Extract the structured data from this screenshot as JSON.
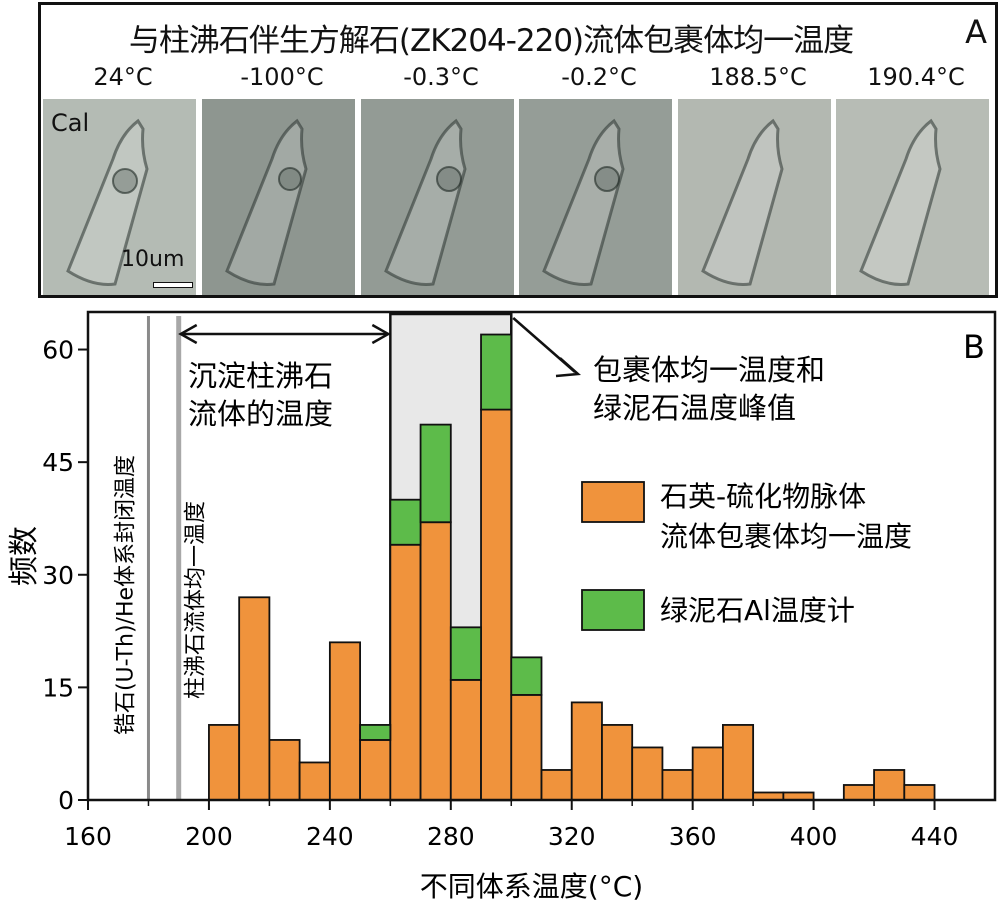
{
  "panel_a": {
    "title": "与柱沸石伴生方解石(ZK204-220)流体包裹体均一温度",
    "label": "A",
    "mineral_label": "Cal",
    "scale_label": "10um",
    "temperatures": [
      "24°C",
      "-100°C",
      "-0.3°C",
      "-0.2°C",
      "188.5°C",
      "190.4°C"
    ]
  },
  "chart_data": {
    "type": "bar",
    "panel_label": "B",
    "xlabel": "不同体系温度(°C)",
    "ylabel": "频数",
    "xlim": [
      160,
      460
    ],
    "ylim": [
      0,
      65
    ],
    "x_ticks": [
      160,
      200,
      240,
      280,
      320,
      360,
      400,
      440
    ],
    "y_ticks": [
      0,
      15,
      30,
      45,
      60
    ],
    "bin_width": 10,
    "series": [
      {
        "name": "石英-硫化物脉体流体包裹体均一温度",
        "color": "#F0933C",
        "bins": [
          200,
          210,
          220,
          230,
          240,
          250,
          260,
          270,
          280,
          290,
          300,
          310,
          320,
          330,
          340,
          350,
          360,
          370,
          380,
          390,
          410,
          420,
          430
        ],
        "values": [
          10,
          27,
          8,
          5,
          21,
          8,
          34,
          37,
          16,
          52,
          14,
          4,
          13,
          10,
          7,
          4,
          7,
          10,
          1,
          1,
          2,
          4,
          2
        ]
      },
      {
        "name": "绿泥石Al温度计",
        "color": "#5DBB4A",
        "bins": [
          250,
          260,
          270,
          280,
          290,
          300
        ],
        "values": [
          2,
          6,
          13,
          7,
          10,
          5
        ]
      }
    ],
    "annotations": {
      "zircon_line_x": 180,
      "zircon_line_label": "锆石(U-Th)/He体系封闭温度",
      "zeolite_line_x": 190,
      "zeolite_line_label": "柱沸石流体均一温度",
      "arrow_range": [
        190,
        260
      ],
      "arrow_label": [
        "沉淀柱沸石",
        "流体的温度"
      ],
      "peak_range": [
        260,
        300
      ],
      "peak_label": [
        "包裹体均一温度和",
        "绿泥石温度峰值"
      ]
    },
    "legend": {
      "placement": "right",
      "items": [
        {
          "lines": [
            "石英-硫化物脉体",
            "流体包裹体均一温度"
          ],
          "color": "#F0933C"
        },
        {
          "lines": [
            "绿泥石Al温度计"
          ],
          "color": "#5DBB4A"
        }
      ]
    }
  }
}
